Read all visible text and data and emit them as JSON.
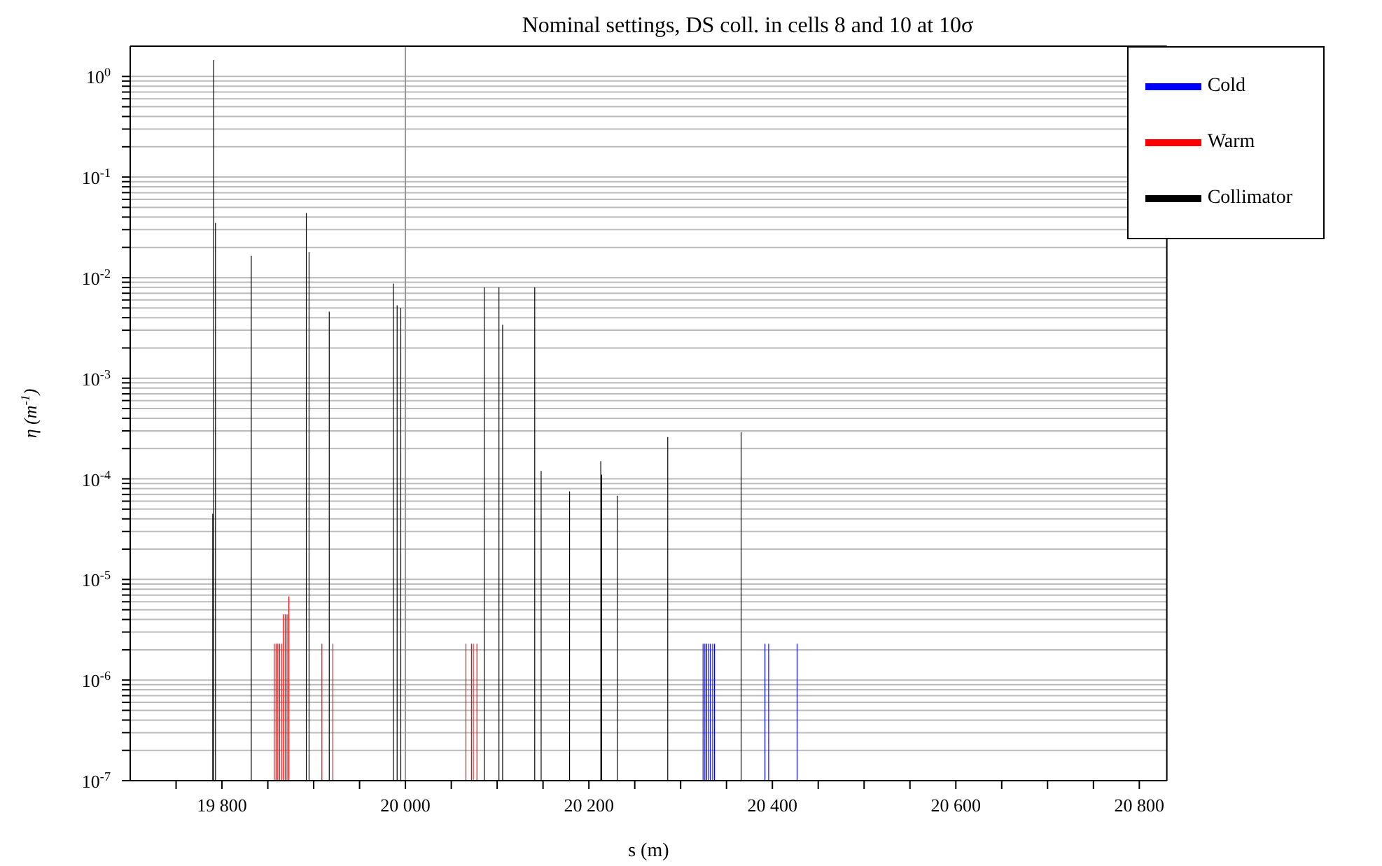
{
  "chart_data": {
    "type": "bar",
    "title": "Nominal settings, DS coll. in cells 8 and 10 at 10σ",
    "xlabel": "s (m)",
    "ylabel": "η (m$^{-1}$)",
    "log": "y",
    "grid": "y",
    "legend": "top right",
    "xlim": [
      19700,
      20830
    ],
    "ylim": [
      1e-07,
      2
    ],
    "xticks": [
      {
        "value": 19750,
        "label": null
      },
      {
        "value": 19800,
        "label": "19 800"
      },
      {
        "value": 19850,
        "label": null
      },
      {
        "value": 19900,
        "label": null
      },
      {
        "value": 19950,
        "label": null
      },
      {
        "value": 20000,
        "label": "20 000"
      },
      {
        "value": 20050,
        "label": null
      },
      {
        "value": 20100,
        "label": null
      },
      {
        "value": 20150,
        "label": null
      },
      {
        "value": 20200,
        "label": "20 200"
      },
      {
        "value": 20250,
        "label": null
      },
      {
        "value": 20300,
        "label": null
      },
      {
        "value": 20350,
        "label": null
      },
      {
        "value": 20400,
        "label": "20 400"
      },
      {
        "value": 20450,
        "label": null
      },
      {
        "value": 20500,
        "label": null
      },
      {
        "value": 20550,
        "label": null
      },
      {
        "value": 20600,
        "label": "20 600"
      },
      {
        "value": 20650,
        "label": null
      },
      {
        "value": 20700,
        "label": null
      },
      {
        "value": 20750,
        "label": null
      },
      {
        "value": 20800,
        "label": "20 800"
      }
    ],
    "yticks": [
      {
        "value": 1e-07,
        "label": "10$^{-7}$"
      },
      {
        "value": 2e-07,
        "label": null
      },
      {
        "value": 3e-07,
        "label": null
      },
      {
        "value": 4e-07,
        "label": null
      },
      {
        "value": 5e-07,
        "label": null
      },
      {
        "value": 6e-07,
        "label": null
      },
      {
        "value": 7e-07,
        "label": null
      },
      {
        "value": 8e-07,
        "label": null
      },
      {
        "value": 9e-07,
        "label": null
      },
      {
        "value": 1e-06,
        "label": "10$^{-6}$"
      },
      {
        "value": 2e-06,
        "label": null
      },
      {
        "value": 3e-06,
        "label": null
      },
      {
        "value": 4e-06,
        "label": null
      },
      {
        "value": 5e-06,
        "label": null
      },
      {
        "value": 6e-06,
        "label": null
      },
      {
        "value": 7e-06,
        "label": null
      },
      {
        "value": 8e-06,
        "label": null
      },
      {
        "value": 9e-06,
        "label": null
      },
      {
        "value": 1e-05,
        "label": "10$^{-5}$"
      },
      {
        "value": 2e-05,
        "label": null
      },
      {
        "value": 3e-05,
        "label": null
      },
      {
        "value": 4e-05,
        "label": null
      },
      {
        "value": 5e-05,
        "label": null
      },
      {
        "value": 6e-05,
        "label": null
      },
      {
        "value": 7e-05,
        "label": null
      },
      {
        "value": 8e-05,
        "label": null
      },
      {
        "value": 9e-05,
        "label": null
      },
      {
        "value": 0.0001,
        "label": "10$^{-4}$"
      },
      {
        "value": 0.0002,
        "label": null
      },
      {
        "value": 0.0003,
        "label": null
      },
      {
        "value": 0.0004,
        "label": null
      },
      {
        "value": 0.0005,
        "label": null
      },
      {
        "value": 0.0006,
        "label": null
      },
      {
        "value": 0.0007,
        "label": null
      },
      {
        "value": 0.0008,
        "label": null
      },
      {
        "value": 0.0009,
        "label": null
      },
      {
        "value": 0.001,
        "label": "10$^{-3}$"
      },
      {
        "value": 0.002,
        "label": null
      },
      {
        "value": 0.003,
        "label": null
      },
      {
        "value": 0.004,
        "label": null
      },
      {
        "value": 0.005,
        "label": null
      },
      {
        "value": 0.006,
        "label": null
      },
      {
        "value": 0.007,
        "label": null
      },
      {
        "value": 0.008,
        "label": null
      },
      {
        "value": 0.009,
        "label": null
      },
      {
        "value": 0.01,
        "label": "10$^{-2}$"
      },
      {
        "value": 0.02,
        "label": null
      },
      {
        "value": 0.03,
        "label": null
      },
      {
        "value": 0.04,
        "label": null
      },
      {
        "value": 0.05,
        "label": null
      },
      {
        "value": 0.06,
        "label": null
      },
      {
        "value": 0.07,
        "label": null
      },
      {
        "value": 0.08,
        "label": null
      },
      {
        "value": 0.09,
        "label": null
      },
      {
        "value": 0.1,
        "label": "10$^{-1}$"
      },
      {
        "value": 0.2,
        "label": null
      },
      {
        "value": 0.3,
        "label": null
      },
      {
        "value": 0.4,
        "label": null
      },
      {
        "value": 0.5,
        "label": null
      },
      {
        "value": 0.6,
        "label": null
      },
      {
        "value": 0.7,
        "label": null
      },
      {
        "value": 0.8,
        "label": null
      },
      {
        "value": 0.9,
        "label": null
      },
      {
        "value": 1,
        "label": "10$^{0}$"
      }
    ],
    "ref_lines": [
      {
        "axis": "x",
        "value": 20000,
        "color": "#999999"
      }
    ],
    "series": [
      {
        "name": "Cold",
        "color": "#0000ff",
        "x": [
          20324.5,
          20326.5,
          20328.5,
          20330.5,
          20332.5,
          20335,
          20337,
          20392,
          20396,
          20427
        ],
        "values": [
          2.3e-06,
          2.3e-06,
          2.3e-06,
          2.3e-06,
          2.3e-06,
          2.3e-06,
          2.3e-06,
          2.3e-06,
          2.3e-06,
          2.3e-06
        ]
      },
      {
        "name": "Warm",
        "color": "#ff0000",
        "x": [
          19857,
          19859,
          19861,
          19863,
          19865,
          19867,
          19869,
          19871,
          19873,
          19909,
          19921,
          20066,
          20072,
          20074,
          20078
        ],
        "values": [
          2.3e-06,
          2.3e-06,
          2.3e-06,
          2.3e-06,
          2.3e-06,
          4.5e-06,
          4.5e-06,
          4.5e-06,
          6.8e-06,
          2.3e-06,
          2.3e-06,
          2.3e-06,
          2.3e-06,
          2.3e-06,
          2.3e-06
        ]
      },
      {
        "name": "Collimator",
        "color": "#000000",
        "x": [
          19790,
          19791,
          19793,
          19832,
          19892,
          19895,
          19917,
          19987,
          19991,
          19995,
          20086,
          20102,
          20106,
          20141,
          20148,
          20179,
          20213,
          20214,
          20231,
          20286,
          20366
        ],
        "values": [
          4.5e-05,
          1.45,
          0.035,
          0.0165,
          0.044,
          0.018,
          0.0046,
          0.0087,
          0.0053,
          0.005,
          0.008,
          0.008,
          0.0034,
          0.008,
          0.00012,
          7.5e-05,
          0.00015,
          0.00011,
          6.8e-05,
          0.00026,
          0.00029
        ]
      }
    ]
  }
}
